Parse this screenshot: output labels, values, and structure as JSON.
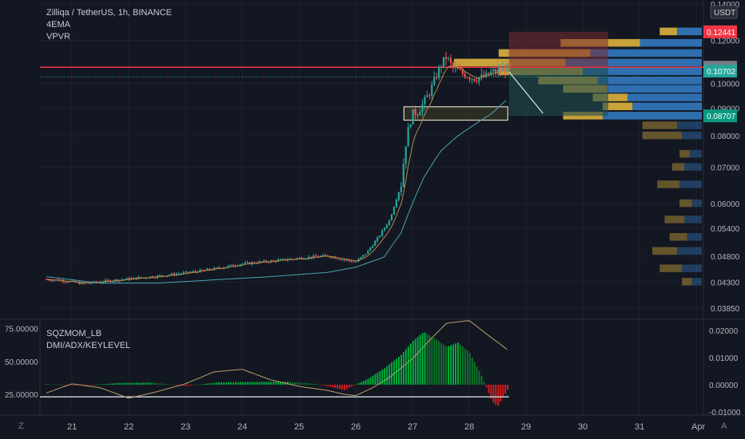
{
  "header": {
    "title": "Zilliqa / TetherUS, 1h, BINANCE",
    "indicators": [
      "4EMA",
      "VPVR"
    ],
    "currency": "USDT"
  },
  "oscillator": {
    "indicators": [
      "SQZMOM_LB",
      "DMI/ADX/KEYLEVEL"
    ],
    "left_labels": [
      "75.00000",
      "50.00000",
      "25.00000"
    ],
    "right_labels": [
      "0.02000",
      "0.01000",
      "0.00000",
      "-0.01000"
    ]
  },
  "time_axis": {
    "labels": [
      "21",
      "22",
      "23",
      "24",
      "25",
      "26",
      "27",
      "28",
      "29",
      "30",
      "31",
      "Apr"
    ]
  },
  "price_labels": {
    "top": "0.14000",
    "stop": "0.12441",
    "resistance": "0.10703",
    "current": "0.10702",
    "target": "0.08707"
  },
  "bottom_bar": {
    "left": "Z",
    "right": "A"
  },
  "colors": {
    "background": "#131722",
    "up": "#26a69a",
    "down": "#ef5350",
    "ema_fast": "#b48a4a",
    "ema_slow": "#4aa3b3",
    "resistance_line": "#f23645",
    "stop_zone": "#7a2a32",
    "target_zone": "#1f4d4f",
    "vol_up": "#2f6fb0",
    "vol_down": "#c8a23a",
    "mom_strong_up": "#00b33c",
    "mom_weak_up": "#0a7a2a",
    "mom_down": "#d91e1e",
    "adx_line": "#b8a06a"
  },
  "chart_data": {
    "type": "candlestick",
    "symbol": "Zilliqa / TetherUS",
    "interval": "1h",
    "exchange": "BINANCE",
    "price_axis": {
      "scale": "log",
      "ticks": [
        "0.14000",
        "0.12000",
        "0.10000",
        "0.09000",
        "0.08000",
        "0.07000",
        "0.06000",
        "0.05400",
        "0.04800",
        "0.04300",
        "0.03850"
      ],
      "tick_values": [
        0.14,
        0.12,
        0.1,
        0.09,
        0.08,
        0.07,
        0.06,
        0.054,
        0.048,
        0.043,
        0.0385
      ]
    },
    "levels": [
      {
        "name": "resistance",
        "value": 0.10703
      },
      {
        "name": "stop",
        "value": 0.12441
      },
      {
        "name": "current",
        "value": 0.10702
      },
      {
        "name": "target",
        "value": 0.08707
      }
    ],
    "price_path": {
      "days": [
        20.55,
        20.8,
        21.2,
        21.6,
        22.0,
        22.5,
        23.0,
        23.5,
        24.0,
        24.5,
        25.0,
        25.5,
        25.7,
        26.0,
        26.2,
        26.4,
        26.6,
        26.8,
        26.9,
        27.0,
        27.1,
        27.3,
        27.5,
        27.6,
        27.7,
        27.9,
        28.1,
        28.3,
        28.4,
        28.5,
        28.7
      ],
      "close": [
        0.0435,
        0.0433,
        0.0427,
        0.0432,
        0.0436,
        0.0441,
        0.0447,
        0.0455,
        0.0465,
        0.047,
        0.0476,
        0.0481,
        0.0475,
        0.0468,
        0.0488,
        0.052,
        0.056,
        0.065,
        0.08,
        0.088,
        0.0885,
        0.096,
        0.108,
        0.112,
        0.107,
        0.104,
        0.102,
        0.103,
        0.105,
        0.105,
        0.107
      ]
    },
    "ema_slow_path": {
      "days": [
        20.55,
        21.5,
        22.5,
        23.5,
        24.5,
        25.5,
        26.0,
        26.5,
        26.8,
        27.0,
        27.2,
        27.5,
        27.8,
        28.1,
        28.4,
        28.7
      ],
      "values": [
        0.044,
        0.0428,
        0.0428,
        0.0434,
        0.044,
        0.0448,
        0.0458,
        0.0478,
        0.053,
        0.06,
        0.067,
        0.075,
        0.08,
        0.084,
        0.088,
        0.094
      ]
    },
    "volume_profile": {
      "rows": [
        {
          "price": 0.1244,
          "up": 0.1,
          "down": 0.07
        },
        {
          "price": 0.1185,
          "up": 0.25,
          "down": 0.32
        },
        {
          "price": 0.1135,
          "up": 0.45,
          "down": 0.37
        },
        {
          "price": 0.109,
          "up": 0.55,
          "down": 0.45
        },
        {
          "price": 0.105,
          "up": 0.48,
          "down": 0.34
        },
        {
          "price": 0.101,
          "up": 0.42,
          "down": 0.24
        },
        {
          "price": 0.0975,
          "up": 0.38,
          "down": 0.18
        },
        {
          "price": 0.094,
          "up": 0.3,
          "down": 0.14
        },
        {
          "price": 0.0905,
          "up": 0.28,
          "down": 0.12
        },
        {
          "price": 0.087,
          "up": 0.4,
          "down": 0.16
        },
        {
          "price": 0.0835,
          "up": 0.1,
          "down": 0.14
        },
        {
          "price": 0.08,
          "up": 0.08,
          "down": 0.16
        },
        {
          "price": 0.074,
          "up": 0.05,
          "down": 0.04
        },
        {
          "price": 0.07,
          "up": 0.07,
          "down": 0.05
        },
        {
          "price": 0.065,
          "up": 0.09,
          "down": 0.09
        },
        {
          "price": 0.06,
          "up": 0.04,
          "down": 0.05
        },
        {
          "price": 0.056,
          "up": 0.07,
          "down": 0.08
        },
        {
          "price": 0.052,
          "up": 0.06,
          "down": 0.07
        },
        {
          "price": 0.049,
          "up": 0.1,
          "down": 0.1
        },
        {
          "price": 0.0455,
          "up": 0.08,
          "down": 0.09
        },
        {
          "price": 0.043,
          "up": 0.04,
          "down": 0.04
        }
      ]
    },
    "momentum": {
      "days": [
        20.55,
        21.2,
        21.8,
        22.4,
        23.0,
        23.6,
        24.2,
        24.8,
        25.3,
        25.6,
        25.8,
        26.0,
        26.2,
        26.5,
        26.8,
        27.0,
        27.2,
        27.4,
        27.6,
        27.8,
        28.0,
        28.2,
        28.4,
        28.5,
        28.7
      ],
      "values": [
        0.0002,
        -0.0003,
        0.0006,
        0.0008,
        -0.0005,
        0.0009,
        0.001,
        0.0011,
        0.0003,
        -0.001,
        -0.002,
        0.0001,
        0.002,
        0.006,
        0.011,
        0.016,
        0.0195,
        0.017,
        0.014,
        0.0155,
        0.012,
        0.004,
        -0.006,
        -0.008,
        -0.001
      ]
    },
    "adx": {
      "days": [
        20.55,
        21.0,
        21.5,
        22.0,
        22.5,
        23.0,
        23.5,
        24.0,
        24.5,
        25.0,
        25.5,
        25.8,
        26.0,
        26.3,
        26.6,
        27.0,
        27.3,
        27.6,
        28.0,
        28.3,
        28.7
      ],
      "values": [
        26,
        33,
        30,
        22,
        27,
        33,
        42,
        44,
        36,
        31,
        28,
        25,
        24,
        30,
        38,
        52,
        66,
        79,
        81,
        71,
        58
      ]
    },
    "adx_keylevel": 23
  }
}
